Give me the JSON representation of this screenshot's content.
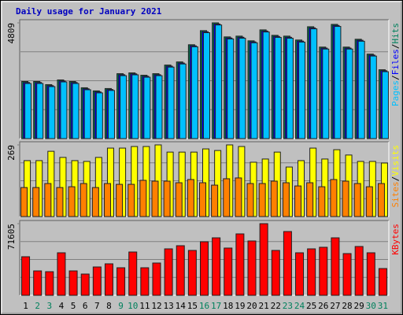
{
  "chart_data": [
    {
      "type": "bar",
      "title": "Daily usage for January 2021",
      "categories": [
        "1",
        "2",
        "3",
        "4",
        "5",
        "6",
        "7",
        "8",
        "9",
        "10",
        "11",
        "12",
        "13",
        "14",
        "15",
        "16",
        "17",
        "18",
        "19",
        "20",
        "21",
        "22",
        "23",
        "24",
        "25",
        "26",
        "27",
        "28",
        "29",
        "30",
        "31"
      ],
      "category_colors": [
        "#000000",
        "#00805c",
        "#00805c",
        "#000000",
        "#000000",
        "#000000",
        "#000000",
        "#000000",
        "#00805c",
        "#00805c",
        "#000000",
        "#000000",
        "#000000",
        "#000000",
        "#000000",
        "#00805c",
        "#00805c",
        "#000000",
        "#000000",
        "#000000",
        "#000000",
        "#000000",
        "#00805c",
        "#00805c",
        "#000000",
        "#000000",
        "#000000",
        "#000000",
        "#000000",
        "#00805c",
        "#00805c"
      ],
      "ylim": [
        0,
        4809
      ],
      "yticks": [
        4809
      ],
      "legend_separator": "/",
      "series": [
        {
          "name": "Hits",
          "color": "#00805c",
          "values": [
            2372,
            2372,
            2242,
            2437,
            2372,
            2112,
            1982,
            2080,
            2697,
            2730,
            2632,
            2697,
            3055,
            3185,
            3899,
            4485,
            4809,
            4225,
            4257,
            4062,
            4517,
            4290,
            4257,
            4095,
            4647,
            3802,
            4745,
            3802,
            4127,
            3510,
            2860
          ]
        },
        {
          "name": "Files",
          "color": "#0000ff",
          "values": [
            2330,
            2330,
            2200,
            2395,
            2330,
            2070,
            1940,
            2040,
            2655,
            2690,
            2590,
            2655,
            3010,
            3140,
            3855,
            4440,
            4760,
            4180,
            4210,
            4020,
            4470,
            4245,
            4210,
            4050,
            4600,
            3760,
            4700,
            3760,
            4085,
            3470,
            2820
          ]
        },
        {
          "name": "Pages",
          "color": "#00c0ff",
          "values": [
            2290,
            2290,
            2160,
            2355,
            2290,
            2030,
            1900,
            2000,
            2615,
            2650,
            2550,
            2615,
            2970,
            3100,
            3815,
            4400,
            4720,
            4140,
            4170,
            3980,
            4430,
            4205,
            4170,
            4010,
            4560,
            3720,
            4660,
            3720,
            4045,
            3430,
            2780
          ]
        }
      ]
    },
    {
      "type": "bar",
      "ylim": [
        0,
        269
      ],
      "yticks": [
        269
      ],
      "legend_separator": "/",
      "series": [
        {
          "name": "Visits",
          "color": "#ffff00",
          "values": [
            210,
            210,
            245,
            222,
            210,
            207,
            222,
            257,
            257,
            263,
            263,
            269,
            242,
            242,
            242,
            254,
            248,
            269,
            263,
            204,
            216,
            242,
            186,
            210,
            257,
            216,
            251,
            231,
            207,
            207,
            201
          ]
        },
        {
          "name": "Sites",
          "color": "#ff8000",
          "values": [
            109,
            109,
            124,
            109,
            112,
            124,
            109,
            124,
            121,
            121,
            136,
            133,
            133,
            127,
            139,
            127,
            118,
            142,
            145,
            124,
            124,
            133,
            127,
            115,
            127,
            112,
            139,
            133,
            124,
            112,
            124
          ]
        }
      ]
    },
    {
      "type": "bar",
      "ylim": [
        0,
        71605
      ],
      "yticks": [
        71605
      ],
      "series": [
        {
          "name": "KBytes",
          "color": "#ff0000",
          "values": [
            38563,
            24397,
            23610,
            42498,
            24397,
            21249,
            28332,
            31480,
            27545,
            43285,
            27545,
            32267,
            46433,
            49581,
            44859,
            53516,
            57451,
            47220,
            61386,
            54303,
            71605,
            44859,
            63747,
            42498,
            46433,
            48007,
            57451,
            41711,
            48794,
            42498,
            26758
          ]
        }
      ]
    }
  ]
}
